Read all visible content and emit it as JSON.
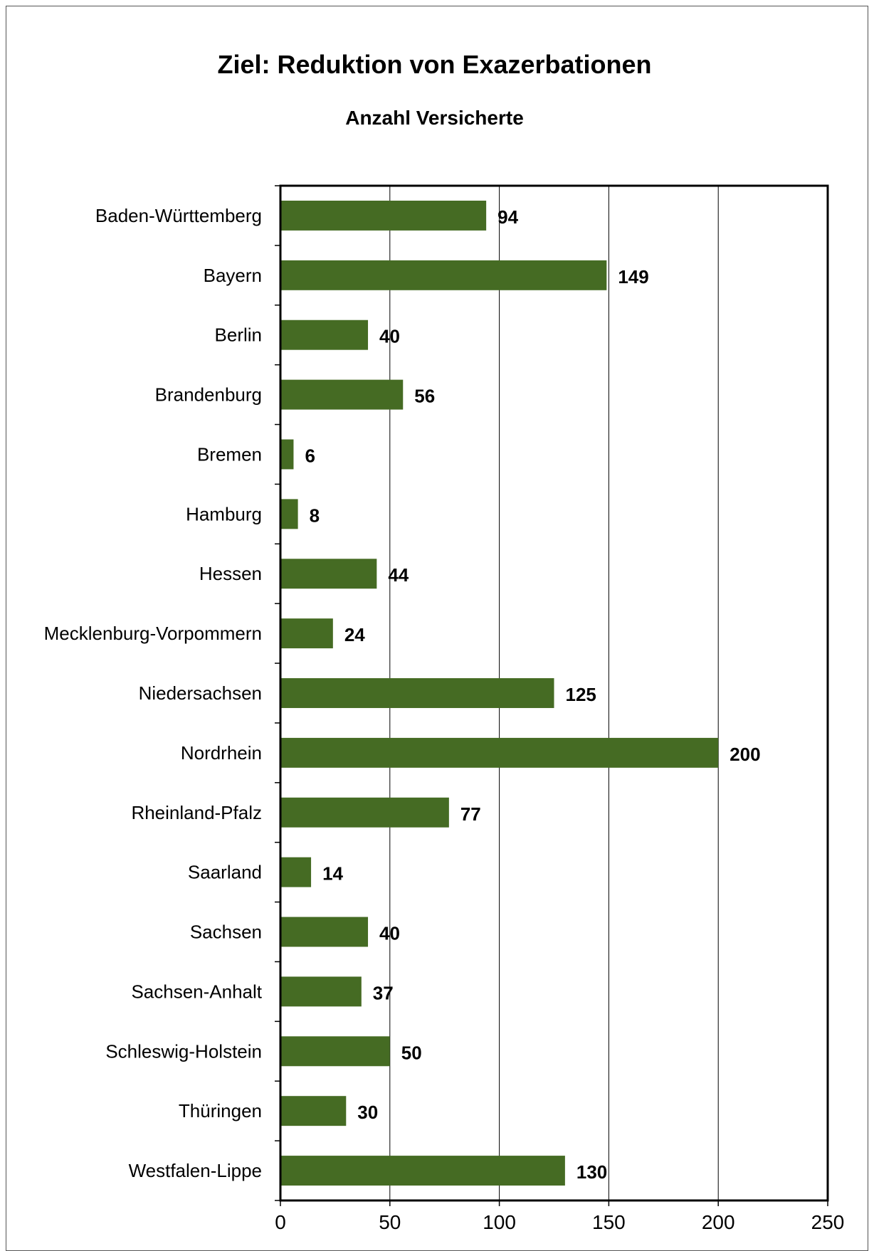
{
  "chart_data": {
    "type": "bar",
    "orientation": "horizontal",
    "title": "Ziel: Reduktion von Exazerbationen",
    "subtitle": "Anzahl Versicherte",
    "categories": [
      "Baden-Württemberg",
      "Bayern",
      "Berlin",
      "Brandenburg",
      "Bremen",
      "Hamburg",
      "Hessen",
      "Mecklenburg-Vorpommern",
      "Niedersachsen",
      "Nordrhein",
      "Rheinland-Pfalz",
      "Saarland",
      "Sachsen",
      "Sachsen-Anhalt",
      "Schleswig-Holstein",
      "Thüringen",
      "Westfalen-Lippe"
    ],
    "values": [
      94,
      149,
      40,
      56,
      6,
      8,
      44,
      24,
      125,
      200,
      77,
      14,
      40,
      37,
      50,
      30,
      130
    ],
    "xlim": [
      0,
      250
    ],
    "xticks": [
      0,
      50,
      100,
      150,
      200,
      250
    ],
    "data_labels": true,
    "grid": "vertical",
    "bar_color": "#456b23"
  }
}
